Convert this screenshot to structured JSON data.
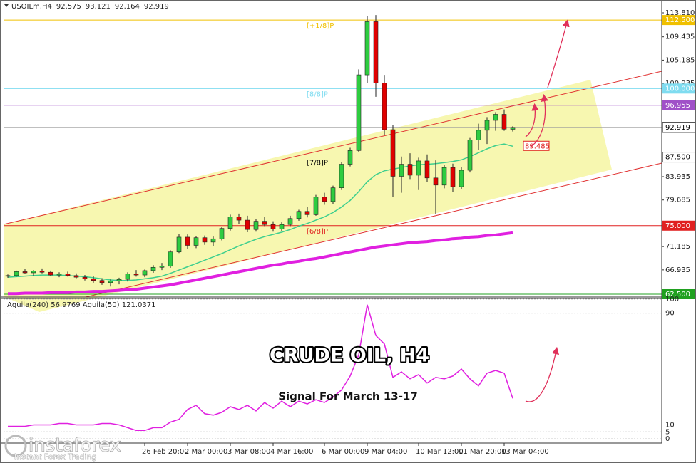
{
  "chart_data": [
    {
      "type": "candlestick",
      "symbol": "USOILm,H4",
      "categories": [
        null,
        null,
        null,
        null,
        null,
        null,
        null,
        null,
        null,
        null,
        null,
        null,
        null,
        null,
        null,
        null,
        "26 Feb 20:00",
        null,
        null,
        null,
        null,
        "2 Mar 00:00",
        null,
        null,
        null,
        null,
        "3 Mar 08:00",
        null,
        null,
        null,
        null,
        "4 Mar 16:00",
        null,
        null,
        null,
        null,
        null,
        "6 Mar 00:00",
        null,
        null,
        null,
        null,
        "9 Mar 04:00",
        null,
        null,
        null,
        null,
        null,
        "10 Mar 12:00",
        null,
        null,
        null,
        null,
        "11 Mar 20:00",
        null,
        null,
        null,
        null,
        "13 Mar 04:00",
        null
      ],
      "open": [
        65.8,
        65.9,
        66.6,
        66.4,
        66.7,
        66.5,
        66.0,
        66.2,
        65.9,
        65.6,
        65.3,
        65.0,
        64.6,
        64.9,
        65.2,
        66.2,
        66.0,
        66.8,
        67.4,
        67.6,
        70.2,
        72.9,
        71.4,
        72.8,
        72.0,
        72.6,
        74.5,
        76.6,
        76.0,
        74.3,
        75.8,
        75.2,
        74.4,
        75.2,
        76.3,
        77.6,
        77.0,
        80.2,
        79.4,
        81.9,
        86.2,
        88.7,
        102.5,
        112.2,
        101.0,
        92.5,
        84.0,
        86.2,
        84.2,
        86.8,
        83.7,
        82.4,
        85.6,
        82.1,
        85.1,
        90.6,
        92.4,
        94.2,
        95.3,
        92.575
      ],
      "high": [
        66.1,
        66.8,
        67.1,
        66.9,
        67.2,
        66.8,
        66.5,
        66.6,
        66.3,
        66.0,
        65.8,
        65.4,
        65.2,
        65.5,
        66.5,
        66.9,
        67.0,
        67.8,
        68.2,
        70.5,
        73.5,
        73.4,
        73.1,
        73.2,
        73.0,
        74.8,
        77.0,
        77.2,
        76.8,
        76.2,
        76.6,
        75.8,
        75.6,
        76.8,
        77.9,
        78.4,
        80.6,
        81.0,
        82.3,
        86.6,
        89.2,
        103.5,
        113.2,
        113.4,
        102.5,
        93.4,
        87.6,
        88.2,
        87.4,
        88.0,
        86.9,
        86.1,
        86.3,
        85.7,
        91.0,
        93.6,
        94.8,
        95.7,
        96.2,
        93.121
      ],
      "low": [
        65.5,
        65.7,
        66.2,
        65.9,
        66.3,
        65.8,
        65.6,
        65.7,
        65.4,
        65.0,
        64.6,
        64.2,
        63.9,
        64.3,
        64.8,
        65.7,
        65.6,
        66.4,
        66.9,
        67.3,
        70.0,
        70.8,
        70.9,
        71.5,
        71.2,
        72.3,
        74.1,
        75.3,
        73.8,
        73.9,
        74.9,
        73.9,
        74.0,
        74.9,
        75.9,
        76.5,
        76.8,
        78.8,
        79.0,
        81.5,
        85.8,
        88.4,
        101.0,
        98.5,
        91.5,
        80.2,
        81.0,
        83.5,
        81.5,
        83.0,
        77.1,
        81.8,
        81.2,
        81.6,
        84.7,
        88.8,
        89.9,
        92.3,
        92.3,
        92.164
      ],
      "close": [
        65.9,
        66.6,
        66.4,
        66.7,
        66.5,
        66.0,
        66.2,
        65.9,
        65.6,
        65.3,
        65.0,
        64.6,
        64.9,
        65.2,
        66.2,
        66.0,
        66.8,
        67.4,
        67.6,
        70.2,
        72.9,
        71.4,
        72.8,
        72.0,
        72.6,
        74.5,
        76.6,
        76.0,
        74.3,
        75.8,
        75.2,
        74.4,
        75.2,
        76.3,
        77.6,
        77.0,
        80.2,
        79.4,
        81.9,
        86.2,
        88.7,
        102.5,
        112.2,
        101.0,
        92.5,
        84.0,
        86.2,
        84.2,
        86.8,
        83.7,
        82.4,
        85.6,
        82.1,
        85.1,
        90.6,
        92.4,
        94.2,
        95.3,
        92.6,
        92.919
      ],
      "up_color": "#2ecc40",
      "down_color": "#e00000",
      "ylim": [
        62.24,
        115.5
      ],
      "yticks": [
        {
          "value": 113.81,
          "label": "113.810"
        },
        109.435,
        105.185,
        100.935,
        83.935,
        79.685,
        71.185,
        66.935
      ],
      "levels": [
        {
          "name": "[+1/8]P",
          "value": 112.5,
          "label": "112.500",
          "color": "#f0c000"
        },
        {
          "name": "[8/8]P",
          "value": 100,
          "label": "100.000",
          "color": "#7fdcf0"
        },
        {
          "value": 96.955,
          "color": "#a050c8"
        },
        {
          "name": "[7/8]P",
          "value": 87.5,
          "label": "87.500",
          "color": "#000000"
        },
        {
          "name": "[6/8]P",
          "value": 75,
          "label": "75.000",
          "color": "#e02020"
        },
        {
          "value": 62.5,
          "label": "62.500",
          "color": "#20a020"
        }
      ],
      "overlays": [
        {
          "color": "#3ecf8e",
          "values": [
            65.6,
            65.7,
            65.8,
            65.9,
            66.0,
            66.0,
            66.0,
            65.9,
            65.8,
            65.7,
            65.5,
            65.3,
            65.1,
            65.0,
            65.0,
            65.1,
            65.3,
            65.5,
            65.8,
            66.3,
            66.9,
            67.5,
            68.1,
            68.7,
            69.3,
            69.9,
            70.6,
            71.3,
            71.9,
            72.5,
            73.0,
            73.4,
            73.8,
            74.3,
            74.9,
            75.4,
            76.0,
            76.6,
            77.4,
            78.4,
            79.6,
            81.2,
            83.0,
            84.3,
            85.0,
            85.3,
            85.6,
            85.9,
            86.1,
            86.2,
            86.3,
            86.5,
            86.7,
            87.0,
            87.6,
            88.3,
            89.0,
            89.6,
            89.9,
            89.485
          ]
        },
        {
          "color": "#e020e0",
          "values": [
            62.6,
            62.6,
            62.7,
            62.7,
            62.7,
            62.8,
            62.8,
            62.8,
            62.9,
            62.9,
            63.0,
            63.0,
            63.1,
            63.2,
            63.3,
            63.4,
            63.6,
            63.8,
            64.0,
            64.2,
            64.5,
            64.8,
            65.1,
            65.4,
            65.7,
            66.0,
            66.3,
            66.6,
            66.9,
            67.2,
            67.5,
            67.8,
            68.0,
            68.3,
            68.5,
            68.8,
            69.0,
            69.3,
            69.6,
            69.9,
            70.2,
            70.5,
            70.8,
            71.1,
            71.3,
            71.5,
            71.7,
            71.9,
            72.0,
            72.1,
            72.3,
            72.4,
            72.6,
            72.7,
            72.9,
            73.0,
            73.2,
            73.3,
            73.5,
            73.7
          ]
        }
      ],
      "title": "CRUDE OIL, H4",
      "subtitle": "Signal For March 13-17"
    },
    {
      "type": "line",
      "label": "Aguila(240) 56.9769 Aguila(50) 121.0371",
      "series": [
        {
          "color": "#e020e0",
          "values": [
            9,
            9,
            9,
            10,
            10,
            10,
            11,
            11,
            10,
            10,
            10,
            11,
            11,
            10,
            8,
            6,
            6,
            8,
            8,
            12,
            14,
            21,
            24,
            18,
            17,
            19,
            23,
            21,
            24,
            20,
            26,
            22,
            27,
            23,
            27,
            25,
            28,
            26,
            30,
            35,
            45,
            60,
            96,
            74,
            68,
            44,
            48,
            43,
            46,
            40,
            44,
            43,
            45,
            50,
            43,
            38,
            47,
            49,
            47,
            29
          ]
        }
      ],
      "ylim": [
        -3,
        100
      ],
      "yticks": [
        0,
        5,
        10,
        90,
        100
      ]
    }
  ],
  "watermark": {
    "brand": "instaforex",
    "tagline": "Instant Forex Trading"
  }
}
